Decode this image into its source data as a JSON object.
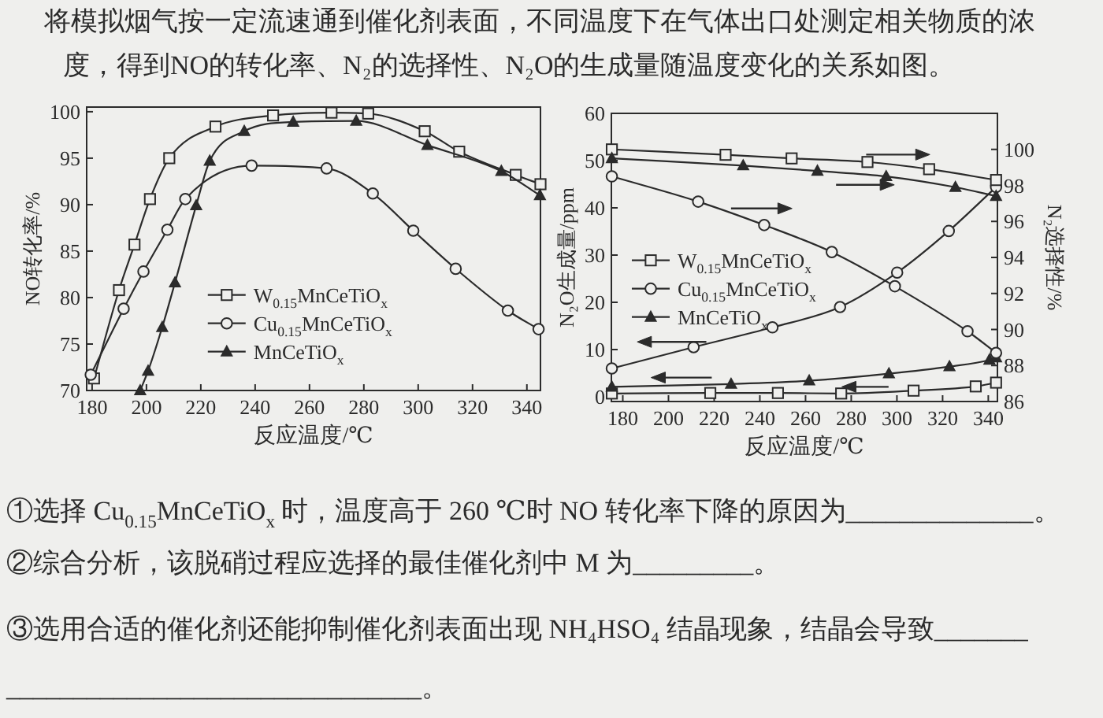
{
  "chart_data": [
    {
      "type": "line",
      "xlabel": "反应温度/℃",
      "ylabel": "NO转化率/%",
      "xlim": [
        178,
        345
      ],
      "ylim": [
        70,
        100.5
      ],
      "xticks": [
        180,
        200,
        220,
        240,
        260,
        280,
        300,
        320,
        340
      ],
      "yticks": [
        70,
        75,
        80,
        85,
        90,
        95,
        100
      ],
      "legend": "bottom",
      "line_style": "solid",
      "annotations": [
        "将模拟烟气按一定流速通到催化剂表面，不同温度下在气体出口处测定相关物质的浓",
        "度，得到NO的转化率、N₂的选择性、N₂O的生成量随温度变化的关系如图。",
        "①选择 Cu$_{0.15}$MnCeTiO$_{x}$ 时，温度高于 260 ℃时 NO 转化率下降的原因为______________。",
        "②综合分析，该脱硝过程应选择的最佳催化剂中 M 为_________。",
        "③选用合适的催化剂还能抑制催化剂表面出现 NH₄HSO₄ 结晶现象，结晶会导致_______",
        "_______________________________。"
      ],
      "series": [
        {
          "name": "W$_{0.15}$MnCeTiO$_{x}$",
          "color": "#2b2b2b",
          "marker": "square",
          "x": [
            180.7,
            189.9,
            195.6,
            201.3,
            208.4,
            225.4,
            246.6,
            268.1,
            281.6,
            302.4,
            315.1,
            335.9,
            345
          ],
          "values": [
            71.3,
            80.8,
            85.7,
            90.6,
            95.0,
            98.4,
            99.6,
            99.9,
            99.8,
            97.9,
            95.7,
            93.2,
            92.2
          ]
        },
        {
          "name": "Cu$_{0.15}$MnCeTiO$_{x}$",
          "color": "#2b2b2b",
          "marker": "circle",
          "x": [
            179.5,
            191.6,
            198.9,
            207.7,
            214.3,
            238.7,
            266.3,
            283.3,
            298.2,
            313.8,
            333.0,
            344.3
          ],
          "values": [
            71.7,
            78.8,
            82.8,
            87.3,
            90.6,
            94.2,
            93.9,
            91.2,
            87.2,
            83.1,
            78.6,
            76.6
          ]
        },
        {
          "name": "MnCeTiO$_{x}$",
          "color": "#2b2b2b",
          "marker": "triangle",
          "x": [
            197.7,
            200.6,
            205.8,
            210.5,
            218.3,
            223.3,
            236.0,
            254.0,
            277.2,
            303.4,
            330.6,
            344.8
          ],
          "values": [
            70.0,
            72.1,
            76.8,
            81.6,
            89.9,
            94.7,
            97.9,
            98.9,
            99.0,
            96.4,
            93.6,
            91.0
          ]
        }
      ]
    },
    {
      "type": "line",
      "xlabel": "反应温度/℃",
      "ylabel": "N₂O生成量/ppm",
      "y2label": "N₂选择性/%",
      "xlim": [
        175,
        344
      ],
      "ylim": [
        -1,
        60
      ],
      "y2lim": [
        86,
        102
      ],
      "xticks": [
        180,
        200,
        220,
        240,
        260,
        280,
        300,
        320,
        340
      ],
      "yticks": [
        0,
        10,
        20,
        30,
        40,
        50,
        60
      ],
      "y2ticks": [
        86,
        88,
        90,
        92,
        94,
        96,
        98,
        100
      ],
      "legend": "left",
      "line_style": "solid",
      "series": [
        {
          "name": "W$_{0.15}$MnCeTiO$_{x}$",
          "color": "#2b2b2b",
          "marker": "square",
          "x": [
            175.2,
            218.3,
            247.9,
            275.6,
            307.3,
            334.5,
            343.4
          ],
          "values": [
            0.7,
            0.8,
            0.8,
            0.7,
            1.3,
            2.2,
            3.0
          ]
        },
        {
          "name": "Cu$_{0.15}$MnCeTiO$_{x}$",
          "color": "#2b2b2b",
          "marker": "circle",
          "x": [
            175.2,
            211.0,
            245.5,
            275.1,
            300.1,
            322.7,
            343.4
          ],
          "values": [
            6.0,
            10.5,
            14.7,
            19.0,
            26.3,
            35.1,
            44.4
          ]
        },
        {
          "name": "MnCeTiO$_{x}$",
          "color": "#2b2b2b",
          "marker": "triangle",
          "x": [
            175.2,
            227.4,
            261.6,
            296.5,
            323.0,
            340.5,
            343.4
          ],
          "values": [
            2.1,
            2.7,
            3.4,
            4.9,
            6.4,
            7.8,
            8.3
          ]
        },
        {
          "color": "#2b2b2b",
          "marker": "square",
          "axis": "y2",
          "x": [
            175.2,
            225.0,
            253.9,
            287.1,
            314.1,
            343.4
          ],
          "values": [
            100.0,
            99.7,
            99.5,
            99.3,
            98.9,
            98.3
          ]
        },
        {
          "color": "#2b2b2b",
          "marker": "circle",
          "axis": "y2",
          "x": [
            175.2,
            213.0,
            241.9,
            271.5,
            299.1,
            330.9,
            343.4
          ],
          "values": [
            98.5,
            97.1,
            95.8,
            94.3,
            92.4,
            89.9,
            88.7
          ]
        },
        {
          "color": "#2b2b2b",
          "marker": "triangle",
          "axis": "y2",
          "x": [
            175.2,
            232.7,
            265.2,
            295.3,
            325.6,
            343.4
          ],
          "values": [
            99.5,
            99.1,
            98.8,
            98.5,
            97.9,
            97.4
          ]
        }
      ]
    }
  ]
}
